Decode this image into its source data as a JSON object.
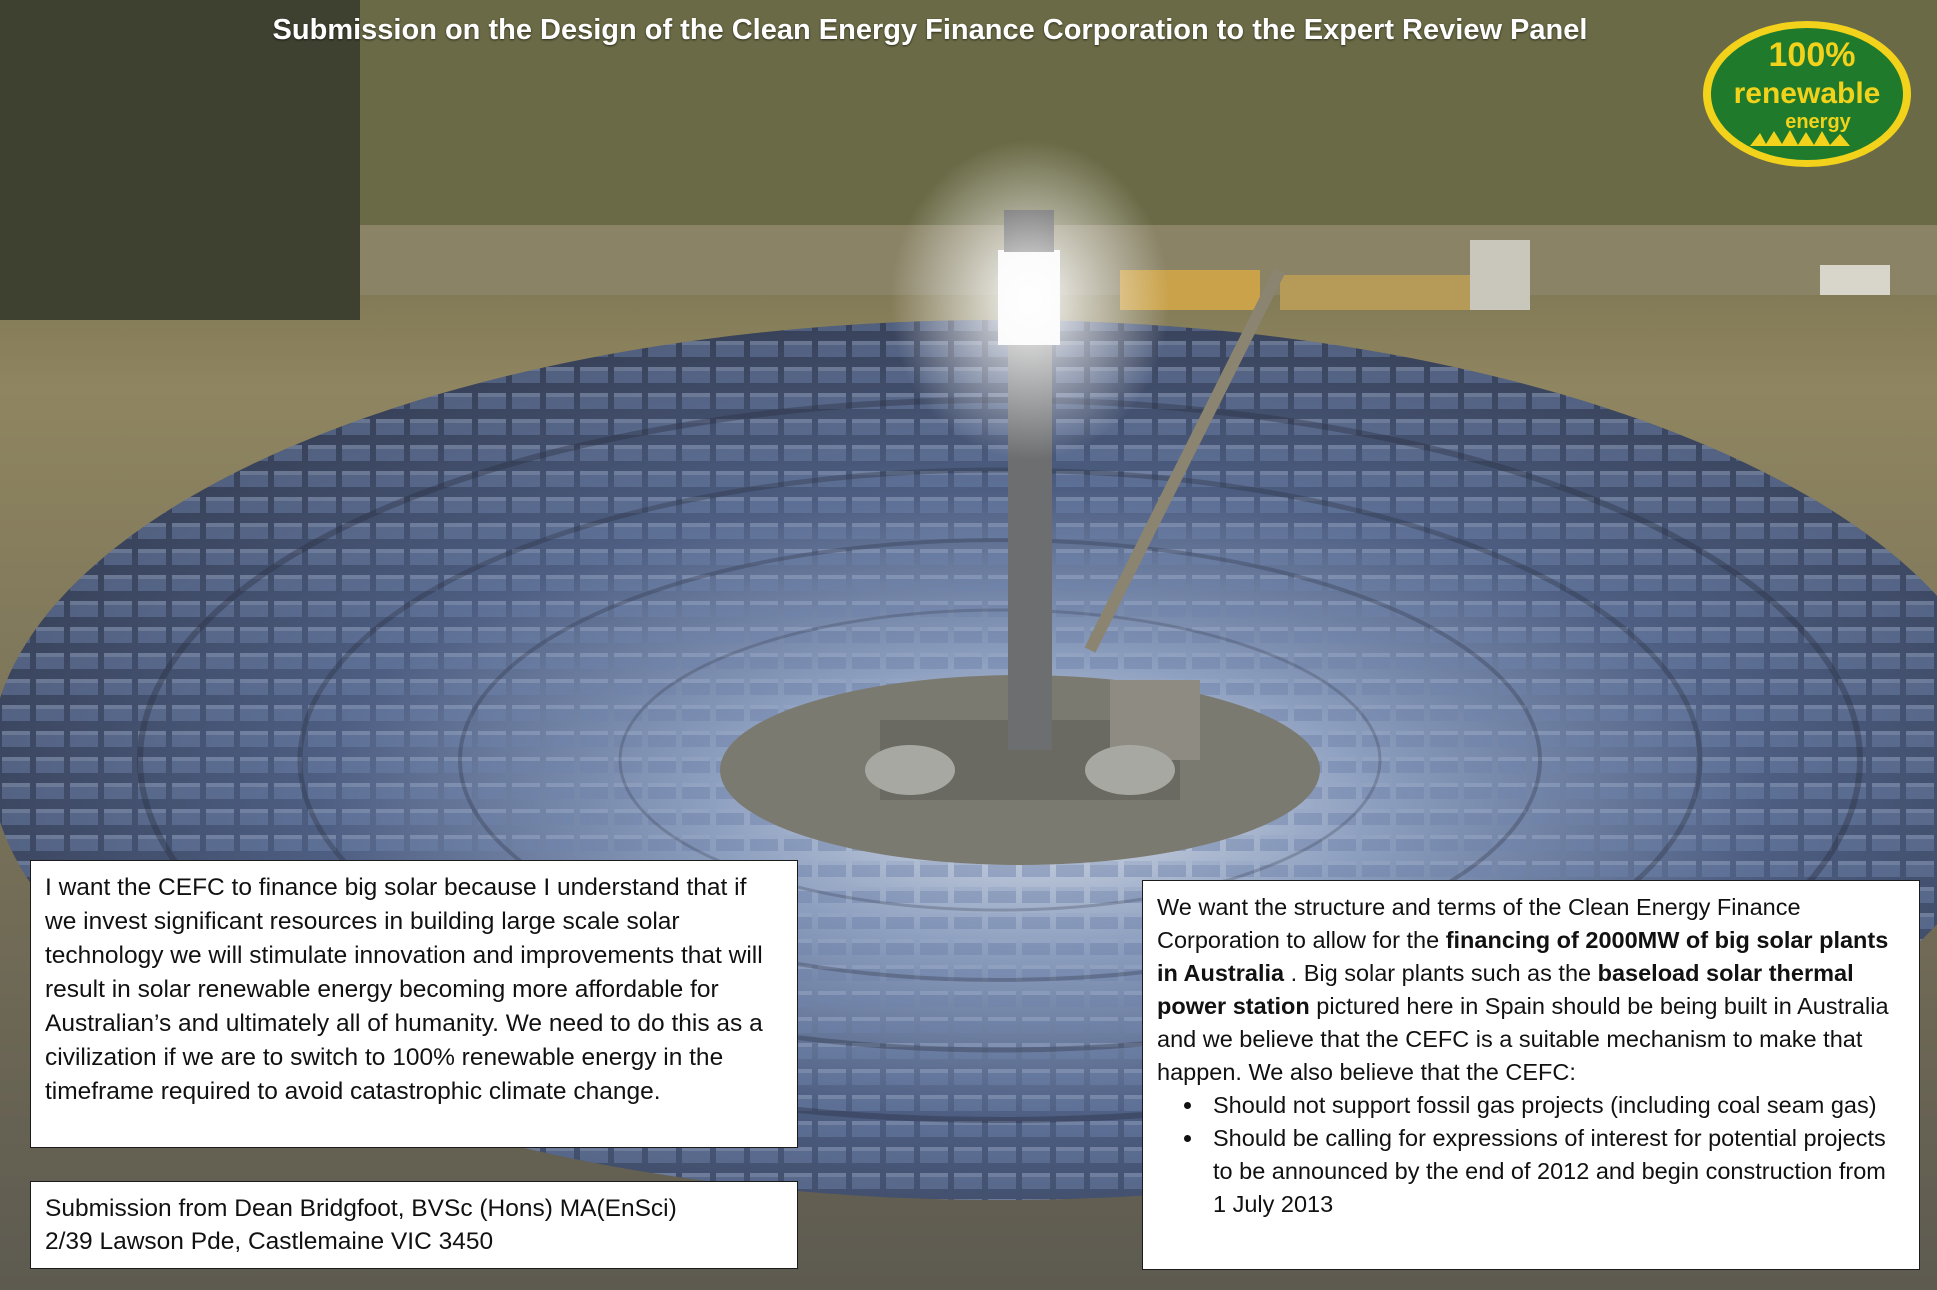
{
  "header": {
    "title": "Submission on the Design of the Clean Energy Finance Corporation to the Expert Review Panel"
  },
  "badge": {
    "line1": "100%",
    "line2": "renewable",
    "line3": "energy",
    "color_green": "#1f7a2c",
    "color_yellow": "#f2d21a"
  },
  "left_box": {
    "text": "I want the CEFC to finance big solar because I understand that if we invest significant resources in building large scale solar technology we will stimulate innovation and improvements that will result in solar renewable energy becoming more affordable for Australian’s and ultimately all of humanity.  We need to do this as a civilization if we are to switch to 100% renewable energy in the timeframe required to avoid catastrophic climate change."
  },
  "submission": {
    "line1": "Submission from Dean Bridgfoot, BVSc (Hons) MA(EnSci)",
    "line2": "2/39 Lawson Pde, Castlemaine VIC 3450"
  },
  "right_box": {
    "p1": "We want the structure and terms of the Clean Energy Finance Corporation to allow for the ",
    "p1_bold": "financing of 2000MW of big solar plants in Australia",
    "p2": " . Big solar plants such as the ",
    "p2_bold": "baseload solar thermal power station",
    "p3": " pictured here in Spain should be being built in Australia and we believe that the CEFC is a suitable mechanism to make that happen. We also believe that the CEFC:",
    "bullets": [
      "Should not support fossil gas projects (including coal seam gas)",
      "Should be calling for expressions of interest for potential projects to be announced by the end of 2012 and begin construction from 1 July 2013"
    ]
  }
}
